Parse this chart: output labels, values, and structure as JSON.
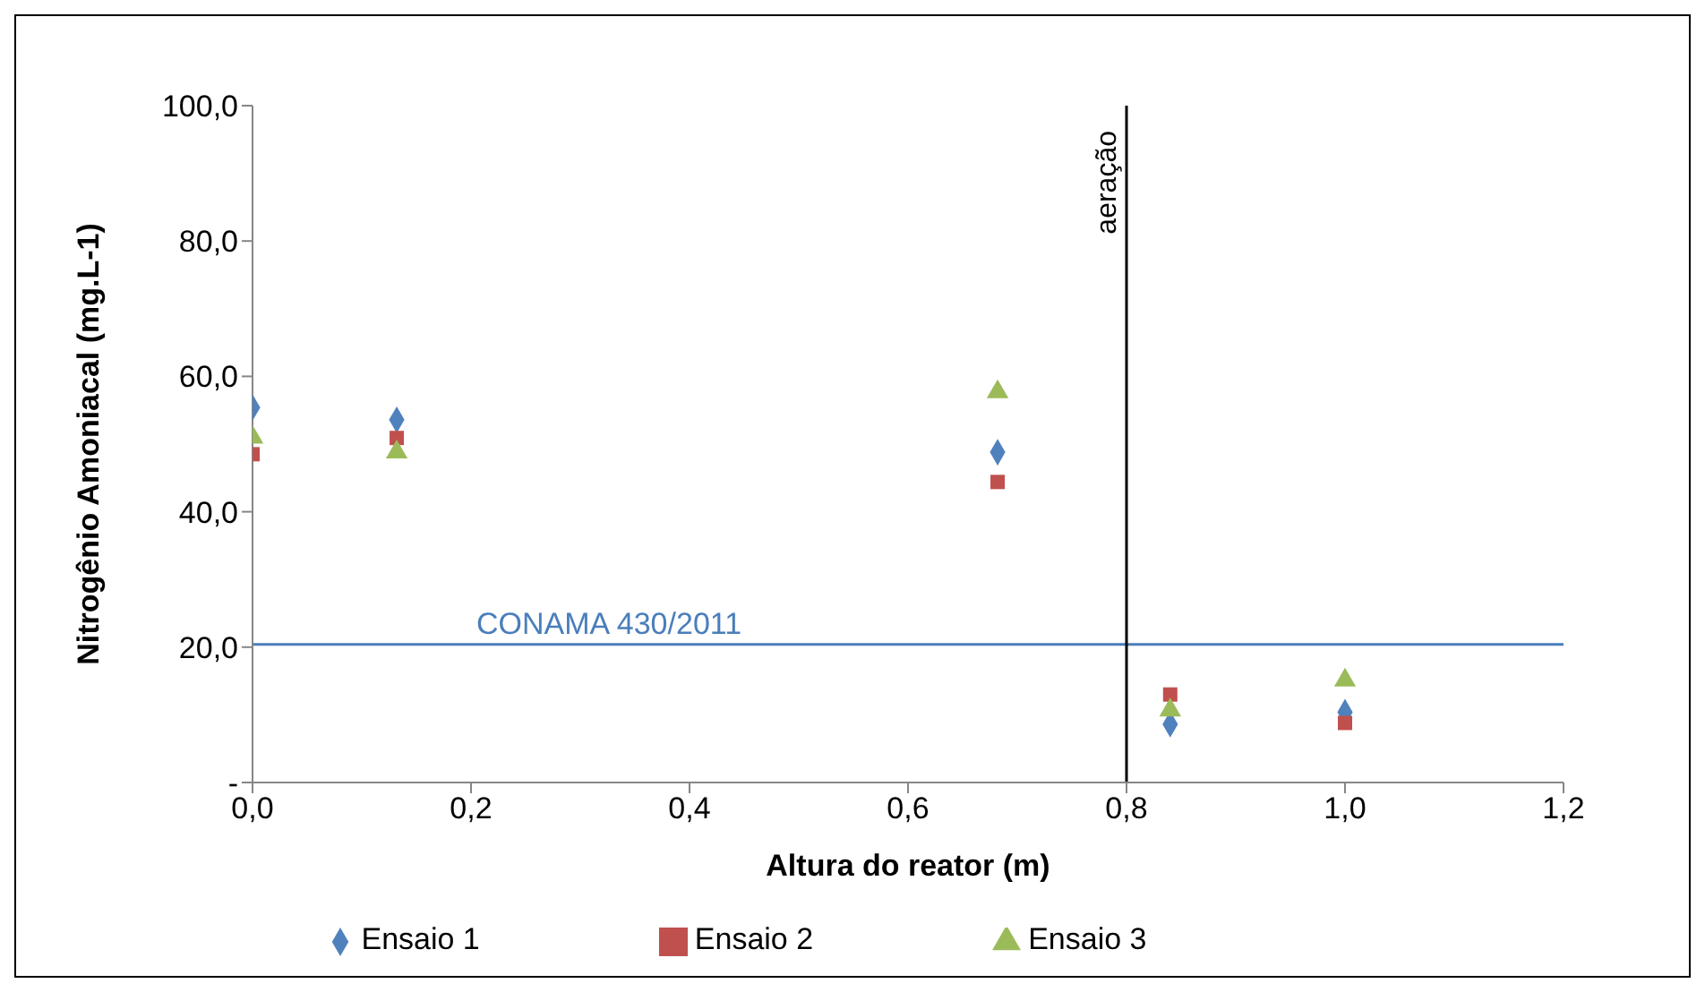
{
  "chart_data": {
    "type": "scatter",
    "xlabel": "Altura do reator (m)",
    "ylabel": "Nitrogênio Amoniacal  (mg.L-1)",
    "x": [
      0,
      0.132,
      0.682,
      0.84,
      1.0
    ],
    "series": [
      {
        "name": "Ensaio 1",
        "color": "#4f81bd",
        "marker": "diamond",
        "values": [
          55.4,
          53.6,
          48.8,
          8.6,
          10.4
        ]
      },
      {
        "name": "Ensaio 2",
        "color": "#c0504d",
        "marker": "square",
        "values": [
          48.5,
          50.9,
          44.4,
          13.0,
          8.8
        ]
      },
      {
        "name": "Ensaio 3",
        "color": "#9bbb59",
        "marker": "triangle",
        "values": [
          51.0,
          48.8,
          57.7,
          10.7,
          15.1
        ]
      }
    ],
    "xlim": [
      0,
      1.2
    ],
    "xticks": [
      {
        "value": 0,
        "label": "0,0"
      },
      {
        "value": 0.2,
        "label": "0,2"
      },
      {
        "value": 0.4,
        "label": "0,4"
      },
      {
        "value": 0.6,
        "label": "0,6"
      },
      {
        "value": 0.8,
        "label": "0,8"
      },
      {
        "value": 1.0,
        "label": "1,0"
      },
      {
        "value": 1.2,
        "label": "1,2"
      }
    ],
    "ylim": [
      0,
      100
    ],
    "yticks": [
      {
        "value": 0,
        "label": "-"
      },
      {
        "value": 20,
        "label": "20,0"
      },
      {
        "value": 40,
        "label": "40,0"
      },
      {
        "value": 60,
        "label": "60,0"
      },
      {
        "value": 80,
        "label": "80,0"
      },
      {
        "value": 100,
        "label": "100,0"
      }
    ],
    "ref_lines": [
      {
        "axis": "y",
        "value": 20.4,
        "label": "CONAMA 430/2011",
        "color": "#4a7ebb"
      },
      {
        "axis": "x",
        "value": 0.8,
        "label": "aeração",
        "color": "#000000"
      }
    ],
    "grid": false,
    "legend": "bottom"
  }
}
